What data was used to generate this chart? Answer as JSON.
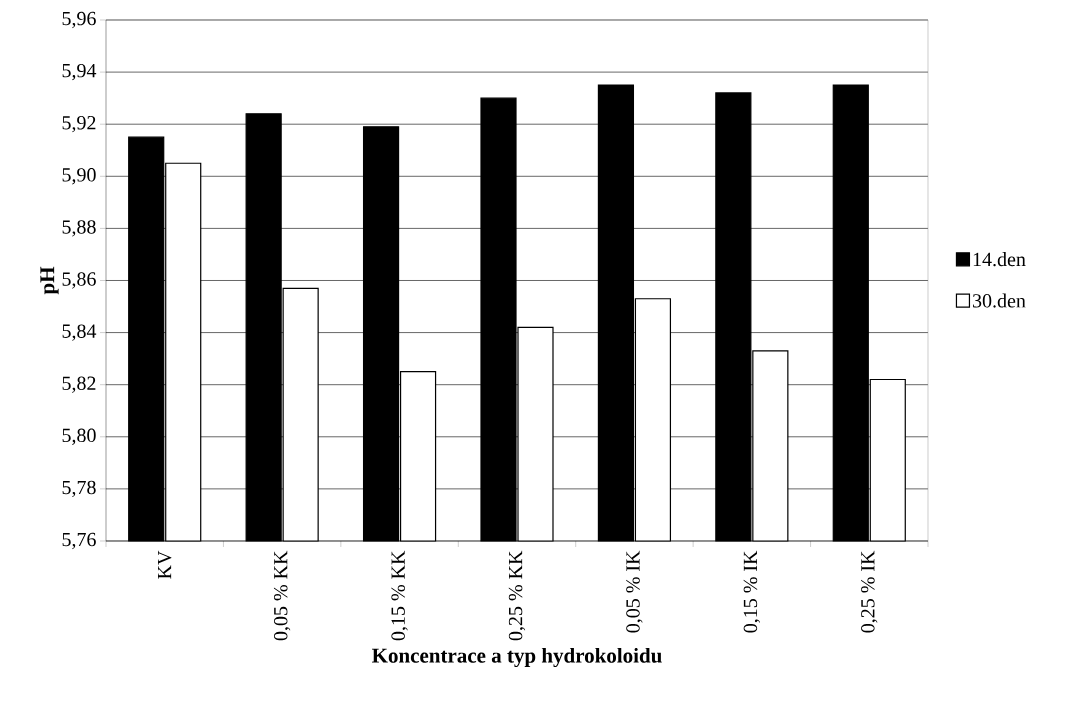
{
  "chart_data": {
    "type": "bar",
    "xlabel": "Koncentrace a typ hydrokoloidu",
    "ylabel": "pH",
    "categories": [
      "KV",
      "0,05 % KK",
      "0,15 % KK",
      "0,25 % KK",
      "0,05 % IK",
      "0,15 % IK",
      "0,25 % IK"
    ],
    "series": [
      {
        "name": "14.den",
        "color": "#000000",
        "values": [
          5.915,
          5.924,
          5.919,
          5.93,
          5.935,
          5.932,
          5.935
        ]
      },
      {
        "name": "30.den",
        "color": "#ffffff",
        "values": [
          5.905,
          5.857,
          5.825,
          5.842,
          5.853,
          5.833,
          5.822
        ]
      }
    ],
    "ylim": [
      5.76,
      5.96
    ],
    "yticks": [
      {
        "value": 5.76,
        "label": "5,76"
      },
      {
        "value": 5.78,
        "label": "5,78"
      },
      {
        "value": 5.8,
        "label": "5,80"
      },
      {
        "value": 5.82,
        "label": "5,82"
      },
      {
        "value": 5.84,
        "label": "5,84"
      },
      {
        "value": 5.86,
        "label": "5,86"
      },
      {
        "value": 5.88,
        "label": "5,88"
      },
      {
        "value": 5.9,
        "label": "5,90"
      },
      {
        "value": 5.92,
        "label": "5,92"
      },
      {
        "value": 5.94,
        "label": "5,94"
      },
      {
        "value": 5.96,
        "label": "5,96"
      }
    ],
    "grid": "y",
    "legend": "right"
  }
}
